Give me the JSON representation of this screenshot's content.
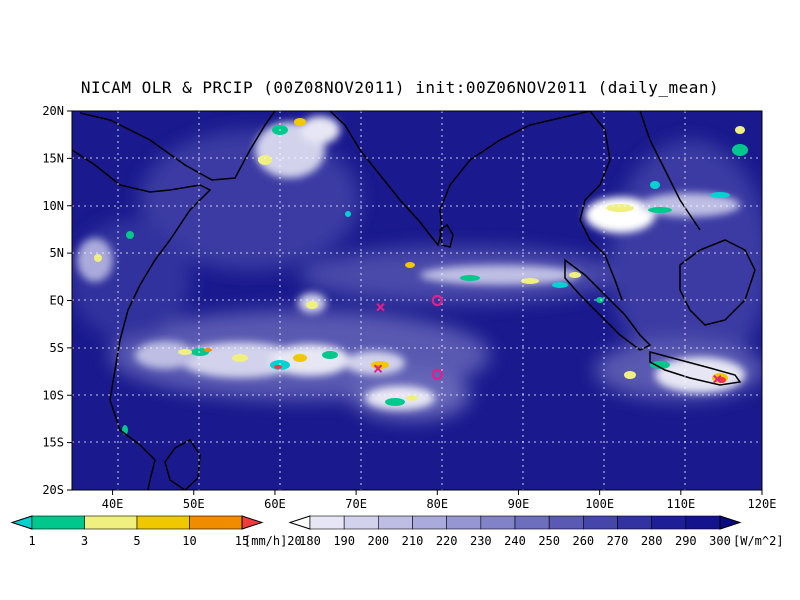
{
  "title": "NICAM OLR & PRCIP (00Z08NOV2011) init:00Z06NOV2011 (daily_mean)",
  "chart_data": {
    "type": "heatmap",
    "title": "NICAM OLR & PRCIP (00Z08NOV2011) init:00Z06NOV2011 (daily_mean)",
    "xlim": [
      35,
      120
    ],
    "ylim": [
      -20,
      20
    ],
    "x_ticks": [
      {
        "value": 40,
        "label": "40E"
      },
      {
        "value": 50,
        "label": "50E"
      },
      {
        "value": 60,
        "label": "60E"
      },
      {
        "value": 70,
        "label": "70E"
      },
      {
        "value": 80,
        "label": "80E"
      },
      {
        "value": 90,
        "label": "90E"
      },
      {
        "value": 100,
        "label": "100E"
      },
      {
        "value": 110,
        "label": "110E"
      },
      {
        "value": 120,
        "label": "120E"
      }
    ],
    "y_ticks": [
      {
        "value": 20,
        "label": "20N"
      },
      {
        "value": 15,
        "label": "15N"
      },
      {
        "value": 10,
        "label": "10N"
      },
      {
        "value": 5,
        "label": "5N"
      },
      {
        "value": 0,
        "label": "EQ"
      },
      {
        "value": -5,
        "label": "5S"
      },
      {
        "value": -10,
        "label": "10S"
      },
      {
        "value": -15,
        "label": "15S"
      },
      {
        "value": -20,
        "label": "20S"
      }
    ],
    "grid": true,
    "precip_colorbar": {
      "unit": "[mm/h]",
      "levels": [
        "1",
        "3",
        "5",
        "10",
        "15",
        "20"
      ],
      "colors": [
        "#00d2d2",
        "#00c88c",
        "#f0f080",
        "#f0c800",
        "#f08c00",
        "#f03c3c"
      ]
    },
    "olr_colorbar": {
      "unit": "[W/m^2]",
      "levels": [
        "180",
        "190",
        "200",
        "210",
        "220",
        "230",
        "240",
        "250",
        "260",
        "270",
        "280",
        "290",
        "300"
      ],
      "colors": [
        "#ffffff",
        "#e6e6f4",
        "#d2d2ec",
        "#bebee4",
        "#aaaadc",
        "#9696d2",
        "#8282c8",
        "#6e6ebe",
        "#5a5ab4",
        "#4646aa",
        "#3232a0",
        "#1e1e96",
        "#14148c",
        "#0a0a82"
      ]
    },
    "markers": [
      {
        "lon": 73,
        "lat": -0.7,
        "symbol": "x"
      },
      {
        "lon": 72.7,
        "lat": -7.2,
        "symbol": "x"
      },
      {
        "lon": 80,
        "lat": 0,
        "symbol": "o"
      },
      {
        "lon": 80,
        "lat": -7.8,
        "symbol": "o"
      },
      {
        "lon": 114.5,
        "lat": -8.3,
        "symbol": "x"
      }
    ],
    "marker_color": "#e0208c"
  }
}
